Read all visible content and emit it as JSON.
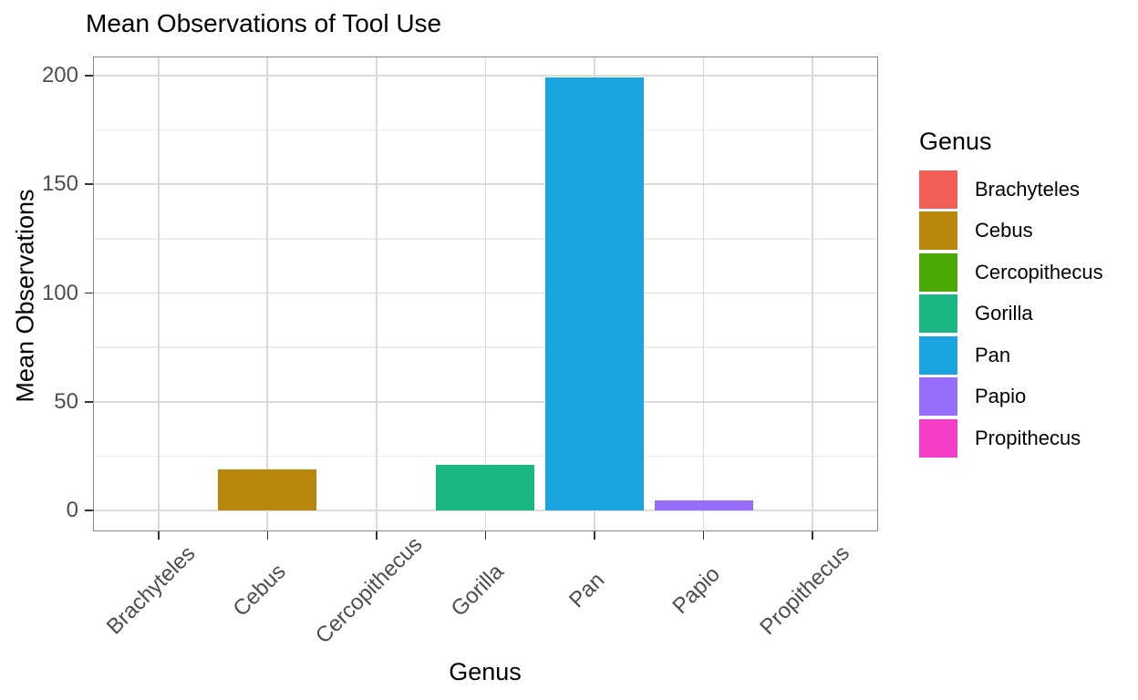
{
  "chart_data": {
    "type": "bar",
    "title": "Mean Observations of Tool Use",
    "xlabel": "Genus",
    "ylabel": "Mean Observations",
    "categories": [
      "Brachyteles",
      "Cebus",
      "Cercopithecus",
      "Gorilla",
      "Pan",
      "Papio",
      "Propithecus"
    ],
    "values": [
      0,
      19,
      0,
      21,
      199,
      4.5,
      0
    ],
    "colors": [
      "#F25D58",
      "#B8860B",
      "#4AA807",
      "#1AB784",
      "#1AA4E0",
      "#966EFA",
      "#F43EC8"
    ],
    "ylim": [
      0,
      200
    ],
    "yticks": [
      0,
      50,
      100,
      150,
      200
    ],
    "yminor_ticks": [
      25,
      75,
      125,
      175
    ],
    "grid": "horizontal major+minor lines, vertical major lines at each category",
    "legend_position": "right",
    "bar_width_fraction": 0.9
  },
  "legend": {
    "title": "Genus",
    "items": [
      {
        "label": "Brachyteles",
        "color": "#F25D58"
      },
      {
        "label": "Cebus",
        "color": "#B8860B"
      },
      {
        "label": "Cercopithecus",
        "color": "#4AA807"
      },
      {
        "label": "Gorilla",
        "color": "#1AB784"
      },
      {
        "label": "Pan",
        "color": "#1AA4E0"
      },
      {
        "label": "Papio",
        "color": "#966EFA"
      },
      {
        "label": "Propithecus",
        "color": "#F43EC8"
      }
    ]
  },
  "style": {
    "background": "#FFFFFF",
    "panel_border": "#8A8A8A",
    "grid_major": "#DBDBDB",
    "grid_minor": "#EDEDED",
    "tick_mark": "#333333",
    "tick_label": "#4D4D4D",
    "text": "#000000"
  }
}
